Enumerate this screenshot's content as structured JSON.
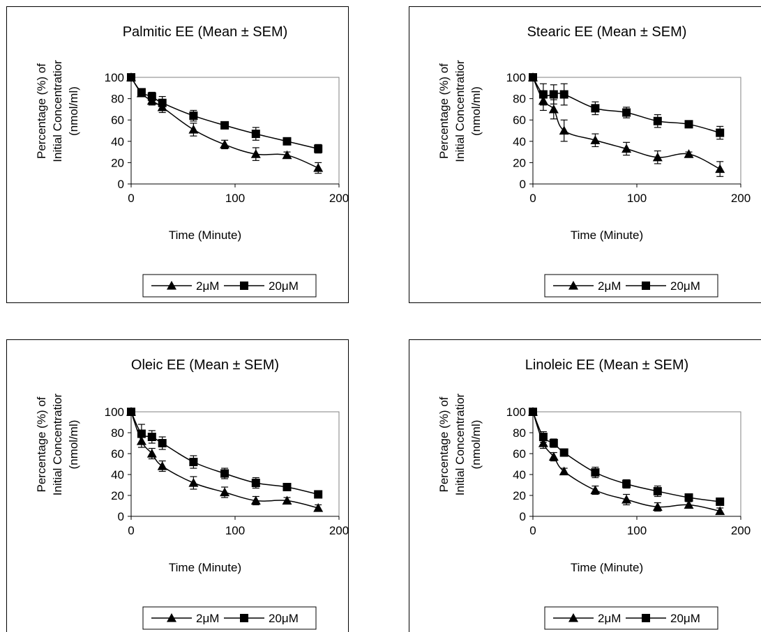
{
  "colors": {
    "line": "#000000",
    "marker": "#000000",
    "plot_border": "#808080",
    "background": "#ffffff"
  },
  "chart_data": [
    {
      "type": "line",
      "title": "Palmitic EE (Mean ± SEM)",
      "xlabel": "Time (Minute)",
      "ylabel": [
        "Percentage (%) of",
        "Initial Concentratior",
        "(nmol/ml)"
      ],
      "xlim": [
        0,
        200
      ],
      "ylim": [
        0,
        100
      ],
      "xticks": [
        0,
        100,
        200
      ],
      "yticks": [
        0,
        20,
        40,
        60,
        80,
        100
      ],
      "grid": false,
      "legend": "bottom",
      "x": [
        0,
        10,
        20,
        30,
        60,
        90,
        120,
        150,
        180
      ],
      "series": [
        {
          "name": "2μM",
          "marker": "triangle",
          "values": [
            100,
            85,
            78,
            72,
            51,
            37,
            28,
            27,
            15
          ],
          "err": [
            0,
            3,
            4,
            5,
            6,
            4,
            6,
            3,
            5
          ]
        },
        {
          "name": "20μM",
          "marker": "square",
          "values": [
            100,
            86,
            82,
            76,
            64,
            55,
            47,
            40,
            33
          ],
          "err": [
            0,
            3,
            4,
            6,
            5,
            3,
            6,
            3,
            4
          ]
        }
      ]
    },
    {
      "type": "line",
      "title": "Stearic EE (Mean ± SEM)",
      "xlabel": "Time (Minute)",
      "ylabel": [
        "Percentage (%) of",
        "Initial Concentratior",
        "(nmol/ml)"
      ],
      "xlim": [
        0,
        200
      ],
      "ylim": [
        0,
        100
      ],
      "xticks": [
        0,
        100,
        200
      ],
      "yticks": [
        0,
        20,
        40,
        60,
        80,
        100
      ],
      "grid": false,
      "legend": "bottom",
      "x": [
        0,
        10,
        20,
        30,
        60,
        90,
        120,
        150,
        180
      ],
      "series": [
        {
          "name": "2μM",
          "marker": "triangle",
          "values": [
            100,
            78,
            70,
            50,
            41,
            33,
            25,
            28,
            14
          ],
          "err": [
            0,
            9,
            9,
            10,
            6,
            6,
            6,
            2,
            7
          ]
        },
        {
          "name": "20μM",
          "marker": "square",
          "values": [
            100,
            84,
            84,
            84,
            71,
            67,
            59,
            56,
            48
          ],
          "err": [
            0,
            10,
            9,
            10,
            6,
            5,
            6,
            2,
            6
          ]
        }
      ]
    },
    {
      "type": "line",
      "title": "Oleic EE (Mean ± SEM)",
      "xlabel": "Time (Minute)",
      "ylabel": [
        "Percentage (%) of",
        "Initial Concentratior",
        "(nmol/ml)"
      ],
      "xlim": [
        0,
        200
      ],
      "ylim": [
        0,
        100
      ],
      "xticks": [
        0,
        100,
        200
      ],
      "yticks": [
        0,
        20,
        40,
        60,
        80,
        100
      ],
      "grid": false,
      "legend": "bottom",
      "x": [
        0,
        10,
        20,
        30,
        60,
        90,
        120,
        150,
        180
      ],
      "series": [
        {
          "name": "2μM",
          "marker": "triangle",
          "values": [
            100,
            72,
            60,
            48,
            32,
            23,
            15,
            15,
            8
          ],
          "err": [
            0,
            6,
            5,
            5,
            6,
            5,
            4,
            3,
            3
          ]
        },
        {
          "name": "20μM",
          "marker": "square",
          "values": [
            100,
            79,
            76,
            70,
            52,
            41,
            32,
            28,
            21
          ],
          "err": [
            0,
            9,
            6,
            6,
            6,
            5,
            5,
            2,
            3
          ]
        }
      ]
    },
    {
      "type": "line",
      "title": "Linoleic EE (Mean ± SEM)",
      "xlabel": "Time (Minute)",
      "ylabel": [
        "Percentage (%) of",
        "Initial Concentratior",
        "(nmol/ml)"
      ],
      "xlim": [
        0,
        200
      ],
      "ylim": [
        0,
        100
      ],
      "xticks": [
        0,
        100,
        200
      ],
      "yticks": [
        0,
        20,
        40,
        60,
        80,
        100
      ],
      "grid": false,
      "legend": "bottom",
      "x": [
        0,
        10,
        20,
        30,
        60,
        90,
        120,
        150,
        180
      ],
      "series": [
        {
          "name": "2μM",
          "marker": "triangle",
          "values": [
            100,
            70,
            57,
            43,
            25,
            16,
            9,
            11,
            5
          ],
          "err": [
            0,
            5,
            4,
            3,
            4,
            5,
            4,
            3,
            3
          ]
        },
        {
          "name": "20μM",
          "marker": "square",
          "values": [
            100,
            76,
            70,
            61,
            42,
            31,
            24,
            18,
            14
          ],
          "err": [
            0,
            5,
            4,
            3,
            5,
            4,
            5,
            2,
            3
          ]
        }
      ]
    }
  ]
}
